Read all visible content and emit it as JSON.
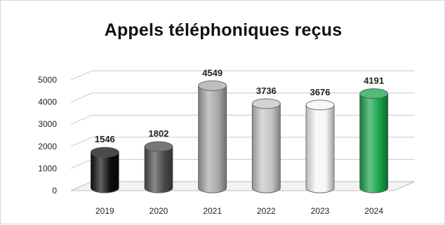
{
  "chart_data": {
    "type": "bar",
    "title": "Appels téléphoniques reçus",
    "categories": [
      "2019",
      "2020",
      "2021",
      "2022",
      "2023",
      "2024"
    ],
    "values": [
      1546,
      1802,
      4549,
      3736,
      3676,
      4191
    ],
    "data_labels": [
      "1546",
      "1802",
      "4549",
      "3736",
      "3676",
      "4191"
    ],
    "bar_colors": [
      "#0d0d0d",
      "#4a4a4a",
      "#a8a8a8",
      "#c4c4c4",
      "#f6f6f6",
      "#16a34a"
    ],
    "bar_shape": "3d-cylinder",
    "y_ticks": [
      "0",
      "1000",
      "2000",
      "3000",
      "4000",
      "5000"
    ],
    "ylim": [
      0,
      5000
    ],
    "grid": true,
    "legend": "none",
    "xlabel": "",
    "ylabel": ""
  }
}
